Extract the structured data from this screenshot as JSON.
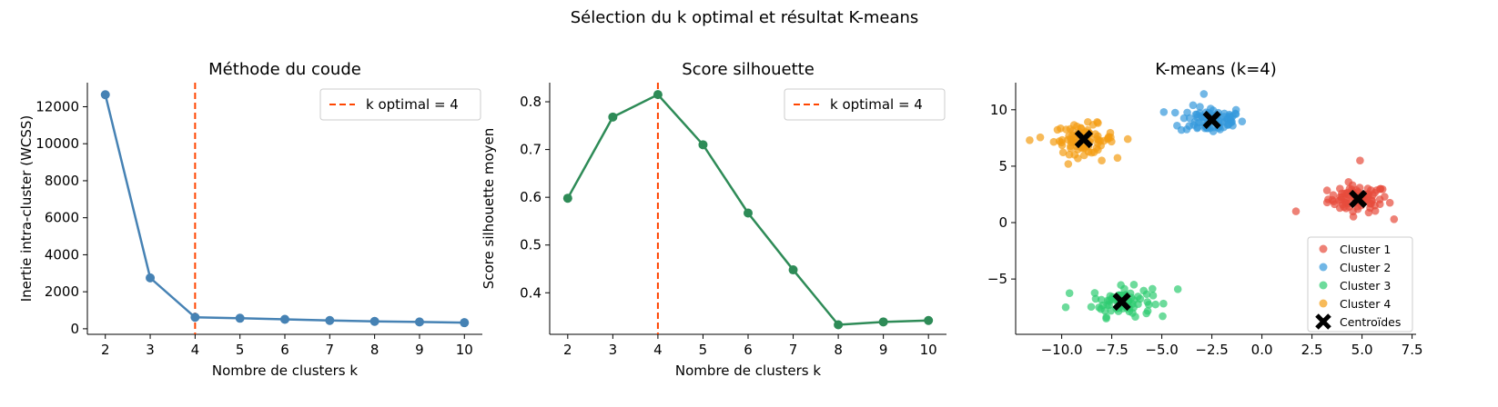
{
  "suptitle": "Sélection du k optimal et résultat K-means",
  "colors": {
    "elbow_line": "#4682b4",
    "silhouette_line": "#2e8b57",
    "optimal_marker": "#ff4500",
    "cluster_1": "#e74c3c",
    "cluster_2": "#3498db",
    "cluster_3": "#2ecc71",
    "cluster_4": "#f39c12",
    "centroid": "#000000"
  },
  "chart_data": [
    {
      "type": "line",
      "title": "Méthode du coude",
      "xlabel": "Nombre de clusters k",
      "ylabel": "Inertie intra-cluster (WCSS)",
      "x": [
        2,
        3,
        4,
        5,
        6,
        7,
        8,
        9,
        10
      ],
      "series": [
        {
          "values": [
            12650,
            2750,
            620,
            570,
            510,
            450,
            400,
            370,
            330
          ]
        }
      ],
      "xlim": [
        1.6,
        10.4
      ],
      "ylim": [
        -300,
        13300
      ],
      "xticks": [
        "2",
        "3",
        "4",
        "5",
        "6",
        "7",
        "8",
        "9",
        "10"
      ],
      "yticks": [
        "0",
        "2000",
        "4000",
        "6000",
        "8000",
        "10000",
        "12000"
      ],
      "vline": {
        "x": 4,
        "label": "k optimal = 4"
      },
      "legend": "top-right",
      "grid": false
    },
    {
      "type": "line",
      "title": "Score silhouette",
      "xlabel": "Nombre de clusters k",
      "ylabel": "Score silhouette moyen",
      "x": [
        2,
        3,
        4,
        5,
        6,
        7,
        8,
        9,
        10
      ],
      "series": [
        {
          "values": [
            0.598,
            0.768,
            0.815,
            0.71,
            0.567,
            0.448,
            0.333,
            0.339,
            0.342
          ]
        }
      ],
      "xlim": [
        1.6,
        10.4
      ],
      "ylim": [
        0.313,
        0.84
      ],
      "xticks": [
        "2",
        "3",
        "4",
        "5",
        "6",
        "7",
        "8",
        "9",
        "10"
      ],
      "yticks": [
        "0.4",
        "0.5",
        "0.6",
        "0.7",
        "0.8"
      ],
      "vline": {
        "x": 4,
        "label": "k optimal = 4"
      },
      "legend": "top-right",
      "grid": false
    },
    {
      "type": "scatter",
      "title": "K-means (k=4)",
      "xlim": [
        -12.3,
        7.7
      ],
      "ylim": [
        -9.9,
        12.4
      ],
      "xticks": [
        "−10.0",
        "−7.5",
        "−5.0",
        "−2.5",
        "0.0",
        "2.5",
        "5.0",
        "7.5"
      ],
      "yticks": [
        "−5",
        "0",
        "5",
        "10"
      ],
      "series": [
        {
          "name": "Cluster 1",
          "center": [
            4.8,
            2.1
          ],
          "spread": [
            0.75,
            0.6
          ],
          "n": 80,
          "outliers": [
            [
              1.7,
              1.0
            ],
            [
              4.9,
              5.5
            ],
            [
              6.6,
              0.3
            ]
          ]
        },
        {
          "name": "Cluster 2",
          "center": [
            -2.5,
            9.1
          ],
          "spread": [
            0.8,
            0.6
          ],
          "n": 80,
          "outliers": [
            [
              -4.9,
              9.8
            ],
            [
              -2.9,
              11.4
            ]
          ]
        },
        {
          "name": "Cluster 3",
          "center": [
            -7.0,
            -7.0
          ],
          "spread": [
            0.75,
            0.65
          ],
          "n": 80,
          "outliers": [
            [
              -4.2,
              -5.9
            ],
            [
              -9.8,
              -7.5
            ]
          ]
        },
        {
          "name": "Cluster 4",
          "center": [
            -8.9,
            7.4
          ],
          "spread": [
            0.75,
            0.65
          ],
          "n": 80,
          "outliers": [
            [
              -11.6,
              7.3
            ],
            [
              -6.7,
              7.4
            ],
            [
              -8.0,
              5.5
            ]
          ]
        }
      ],
      "centroids": {
        "name": "Centroïdes",
        "points": [
          [
            4.8,
            2.1
          ],
          [
            -2.5,
            9.1
          ],
          [
            -7.0,
            -7.0
          ],
          [
            -8.9,
            7.4
          ]
        ]
      },
      "legend": "bottom-right",
      "grid": false
    }
  ]
}
